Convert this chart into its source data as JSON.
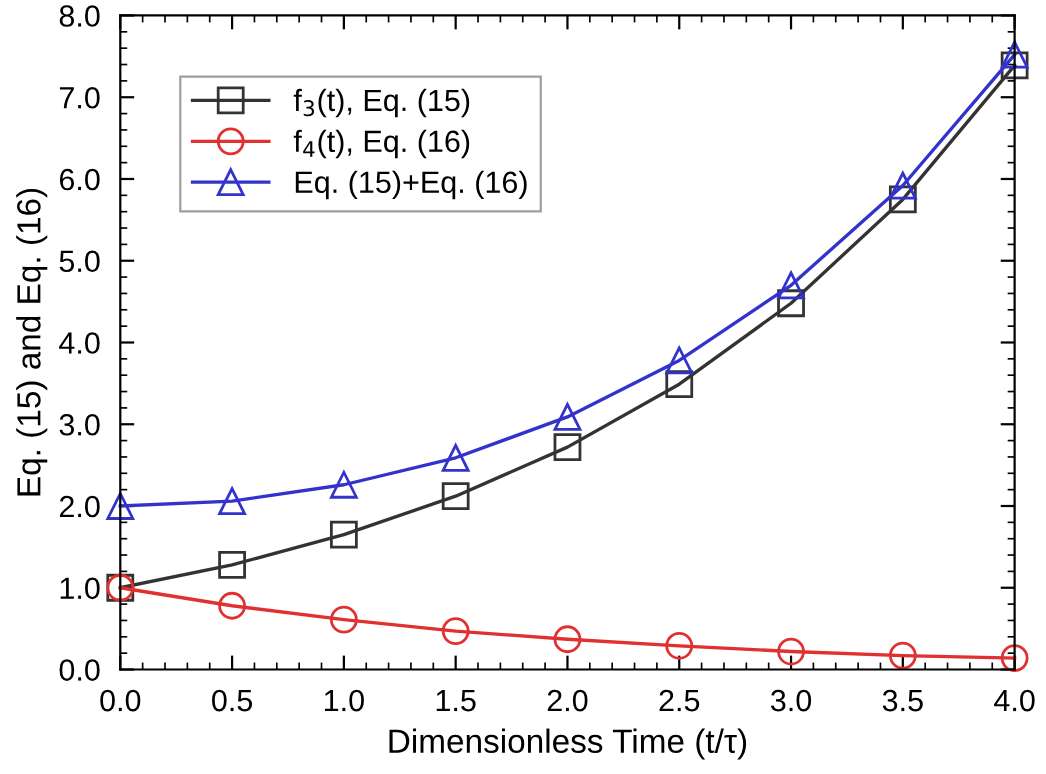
{
  "chart_data": {
    "type": "line",
    "xlabel": "Dimensionless Time (t/τ)",
    "ylabel": "Eq. (15) and Eq. (16)",
    "x": [
      0.0,
      0.5,
      1.0,
      1.5,
      2.0,
      2.5,
      3.0,
      3.5,
      4.0
    ],
    "series": [
      {
        "name": "f$_{3}$(t), Eq. (15)",
        "color": "#333333",
        "marker": "square",
        "values": [
          1.0,
          1.28,
          1.65,
          2.12,
          2.72,
          3.49,
          4.48,
          5.75,
          7.39
        ]
      },
      {
        "name": "f$_{4}$(t), Eq. (16)",
        "color": "#e03030",
        "marker": "circle",
        "values": [
          1.0,
          0.78,
          0.61,
          0.47,
          0.37,
          0.29,
          0.22,
          0.17,
          0.14
        ]
      },
      {
        "name": "Eq. (15)+Eq. (16)",
        "color": "#3333cc",
        "marker": "triangle",
        "values": [
          2.0,
          2.06,
          2.26,
          2.59,
          3.09,
          3.78,
          4.7,
          5.92,
          7.52
        ]
      }
    ],
    "xlim": [
      0.0,
      4.0
    ],
    "ylim": [
      0.0,
      8.0
    ],
    "xticks": [
      {
        "value": 0,
        "label": "0.0"
      },
      0.5,
      {
        "value": 1,
        "label": "1.0"
      },
      1.5,
      {
        "value": 2,
        "label": "2.0"
      },
      2.5,
      {
        "value": 3,
        "label": "3.0"
      },
      3.5,
      {
        "value": 4,
        "label": "4.0"
      }
    ],
    "yticks": [
      {
        "value": 0,
        "label": "0.0"
      },
      {
        "value": 1,
        "label": "1.0"
      },
      {
        "value": 2,
        "label": "2.0"
      },
      {
        "value": 3,
        "label": "3.0"
      },
      {
        "value": 4,
        "label": "4.0"
      },
      {
        "value": 5,
        "label": "5.0"
      },
      {
        "value": 6,
        "label": "6.0"
      },
      {
        "value": 7,
        "label": "7.0"
      },
      {
        "value": 8,
        "label": "8.0"
      }
    ],
    "grid": false,
    "legend": "top left",
    "line_style": "solid"
  }
}
